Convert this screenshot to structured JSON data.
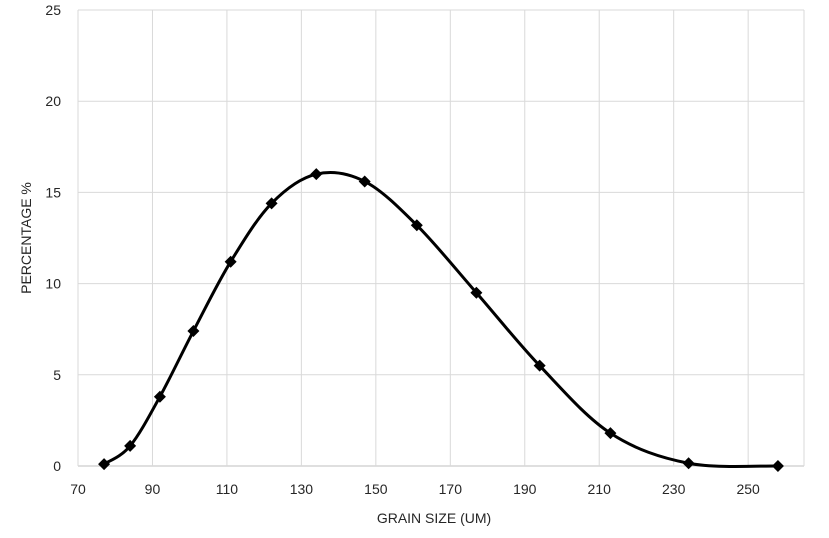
{
  "chart_data": {
    "type": "line",
    "title": "",
    "xlabel": "GRAIN SIZE (UM)",
    "ylabel": "PERCENTAGE %",
    "xlim": [
      70,
      265
    ],
    "ylim": [
      0,
      25
    ],
    "x_ticks": [
      70,
      90,
      110,
      130,
      150,
      170,
      190,
      210,
      230,
      250
    ],
    "y_ticks": [
      0,
      5,
      10,
      15,
      20,
      25
    ],
    "grid": true,
    "smooth": true,
    "marker": "diamond",
    "line_color": "#000000",
    "grid_color": "#d9d9d9",
    "series": [
      {
        "points": [
          {
            "x": 77,
            "y": 0.1
          },
          {
            "x": 84,
            "y": 1.1
          },
          {
            "x": 92,
            "y": 3.8
          },
          {
            "x": 101,
            "y": 7.4
          },
          {
            "x": 111,
            "y": 11.2
          },
          {
            "x": 122,
            "y": 14.4
          },
          {
            "x": 134,
            "y": 16.0
          },
          {
            "x": 147,
            "y": 15.6
          },
          {
            "x": 161,
            "y": 13.2
          },
          {
            "x": 177,
            "y": 9.5
          },
          {
            "x": 194,
            "y": 5.5
          },
          {
            "x": 213,
            "y": 1.8
          },
          {
            "x": 234,
            "y": 0.15
          },
          {
            "x": 258,
            "y": 0.0
          }
        ]
      }
    ]
  }
}
